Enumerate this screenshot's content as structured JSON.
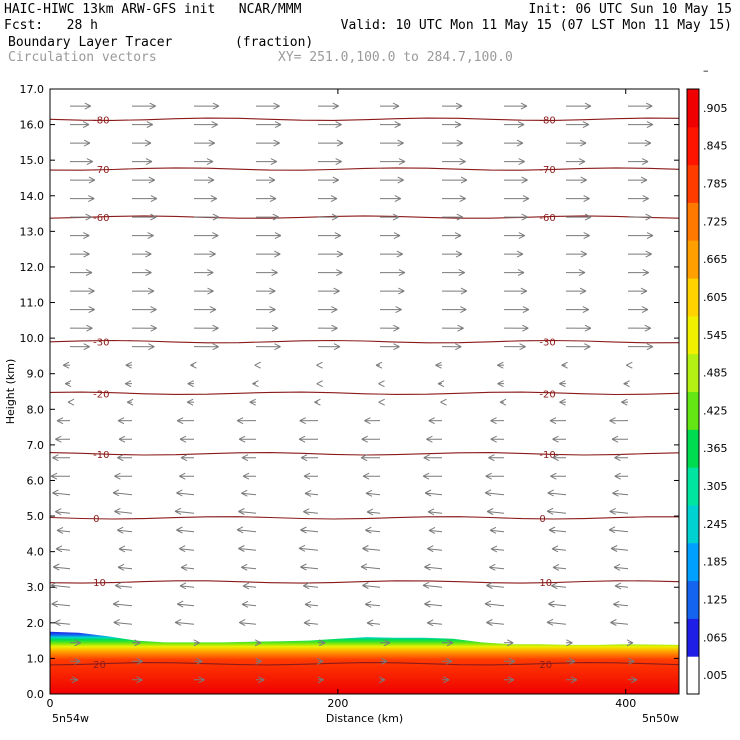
{
  "header": {
    "line1_left": "HAIC-HIWC 13km ARW-GFS init   NCAR/MMM",
    "line1_right": "Init: 06 UTC Sun 10 May 15",
    "line2_left": "Fcst:   28 h",
    "line2_right": "Valid: 10 UTC Mon 11 May 15 (07 LST Mon 11 May 15)",
    "line3_left": "Boundary Layer Tracer        (fraction)",
    "line4_left": "Circulation vectors",
    "line4_right": "XY= 251.0,100.0 to 284.7,100.0"
  },
  "colors": {
    "contour": "#8b1a1a",
    "vector": "#7a7a7a",
    "colorbar": [
      "#ffffff",
      "#1e1ee6",
      "#1464f0",
      "#00a0ff",
      "#00d2d2",
      "#00e6a0",
      "#00dc50",
      "#64e614",
      "#b4f014",
      "#f0f000",
      "#ffd200",
      "#ffa000",
      "#ff7800",
      "#ff3c00",
      "#ff1400",
      "#f00000"
    ]
  },
  "chart_data": {
    "type": "heatmap",
    "title": "Boundary Layer Tracer",
    "units": "(fraction)",
    "xlabel": "Distance (km)",
    "ylabel": "Height (km)",
    "xlim": [
      0,
      437
    ],
    "ylim": [
      0,
      17
    ],
    "x_ticks": [
      0,
      200,
      400
    ],
    "y_ticks": [
      "0.0",
      "1.0",
      "2.0",
      "3.0",
      "4.0",
      "5.0",
      "6.0",
      "7.0",
      "8.0",
      "9.0",
      "10.0",
      "11.0",
      "12.0",
      "13.0",
      "14.0",
      "15.0",
      "16.0",
      "17.0"
    ],
    "x_endpoint_labels": [
      "5n54w",
      "5n50w"
    ],
    "colorbar_labels": [
      ".005",
      ".065",
      ".125",
      ".185",
      ".245",
      ".305",
      ".365",
      ".425",
      ".485",
      ".545",
      ".605",
      ".665",
      ".725",
      ".785",
      ".845",
      ".905",
      "–"
    ],
    "tracer_top_km": [
      1.75,
      1.72,
      1.62,
      1.5,
      1.45,
      1.45,
      1.45,
      1.47,
      1.48,
      1.5,
      1.55,
      1.6,
      1.58,
      1.58,
      1.55,
      1.45,
      1.4,
      1.4,
      1.38,
      1.38,
      1.4,
      1.38
    ],
    "tracer_x_km": [
      0,
      20,
      40,
      60,
      80,
      100,
      120,
      140,
      160,
      180,
      200,
      220,
      240,
      260,
      280,
      300,
      320,
      340,
      360,
      380,
      400,
      437
    ],
    "temperature_contours": [
      {
        "label": "-80",
        "height_km": 16.15
      },
      {
        "label": "-70",
        "height_km": 14.75
      },
      {
        "label": "-60",
        "height_km": 13.4
      },
      {
        "label": "-30",
        "height_km": 9.9
      },
      {
        "label": "-20",
        "height_km": 8.45
      },
      {
        "label": "-10",
        "height_km": 6.75
      },
      {
        "label": "0",
        "height_km": 4.95
      },
      {
        "label": "10",
        "height_km": 3.15
      },
      {
        "label": "20",
        "height_km": 0.85
      }
    ]
  }
}
